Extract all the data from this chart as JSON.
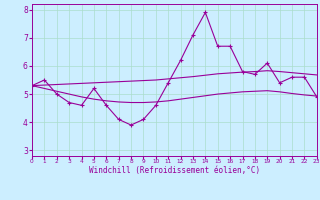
{
  "xlabel": "Windchill (Refroidissement éolien,°C)",
  "bg_color": "#cceeff",
  "grid_color": "#aaddcc",
  "line_color": "#990099",
  "x": [
    0,
    1,
    2,
    3,
    4,
    5,
    6,
    7,
    8,
    9,
    10,
    11,
    12,
    13,
    14,
    15,
    16,
    17,
    18,
    19,
    20,
    21,
    22,
    23
  ],
  "y_main": [
    5.3,
    5.5,
    5.0,
    4.7,
    4.6,
    5.2,
    4.6,
    4.1,
    3.9,
    4.1,
    4.6,
    5.4,
    6.2,
    7.1,
    7.9,
    6.7,
    6.7,
    5.8,
    5.7,
    6.1,
    5.4,
    5.6,
    5.6,
    4.9
  ],
  "y_upper": [
    5.3,
    5.32,
    5.34,
    5.36,
    5.38,
    5.4,
    5.42,
    5.44,
    5.46,
    5.48,
    5.5,
    5.54,
    5.58,
    5.62,
    5.67,
    5.72,
    5.75,
    5.78,
    5.8,
    5.83,
    5.8,
    5.76,
    5.72,
    5.68
  ],
  "y_lower": [
    5.3,
    5.2,
    5.1,
    5.0,
    4.9,
    4.82,
    4.76,
    4.72,
    4.7,
    4.7,
    4.72,
    4.76,
    4.82,
    4.88,
    4.94,
    5.0,
    5.04,
    5.08,
    5.1,
    5.12,
    5.08,
    5.02,
    4.97,
    4.93
  ],
  "ylim": [
    2.8,
    8.2
  ],
  "yticks": [
    3,
    4,
    5,
    6,
    7,
    8
  ],
  "xticks": [
    0,
    1,
    2,
    3,
    4,
    5,
    6,
    7,
    8,
    9,
    10,
    11,
    12,
    13,
    14,
    15,
    16,
    17,
    18,
    19,
    20,
    21,
    22,
    23
  ]
}
